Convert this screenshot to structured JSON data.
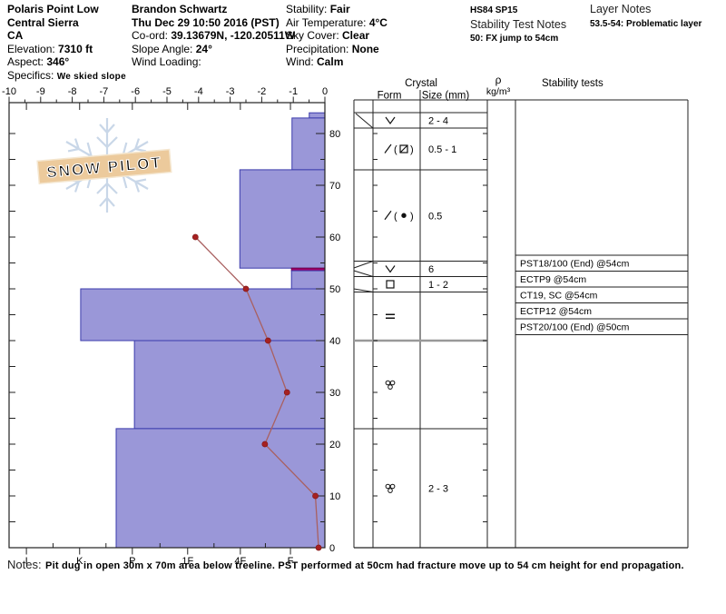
{
  "header": {
    "columns": [
      {
        "name": "location",
        "lines": [
          {
            "text": "Polaris Point Low",
            "bold": true
          },
          {
            "text": "Central Sierra",
            "bold": true
          },
          {
            "text": "CA",
            "bold": true
          },
          {
            "label": "Elevation: ",
            "value": "7310 ft"
          },
          {
            "label": "Aspect: ",
            "value": "346°"
          },
          {
            "label": "Specifics: ",
            "value": "We skied slope",
            "small_value": true
          }
        ]
      },
      {
        "name": "observer",
        "lines": [
          {
            "text": "Brandon Schwartz",
            "bold": true
          },
          {
            "text": "Thu Dec 29 10:50 2016 (PST)",
            "bold": true
          },
          {
            "label": "Co-ord: ",
            "value": "39.13679N, -120.20511W"
          },
          {
            "label": "Slope Angle: ",
            "value": "24°"
          },
          {
            "label": "Wind Loading:",
            "value": ""
          }
        ]
      },
      {
        "name": "conditions",
        "lines": [
          {
            "label": "Stability: ",
            "value": "Fair"
          },
          {
            "label": "Air Temperature: ",
            "value": "4°C"
          },
          {
            "label": "Sky Cover: ",
            "value": "Clear"
          },
          {
            "label": "Precipitation: ",
            "value": "None"
          },
          {
            "label": "Wind: ",
            "value": "Calm"
          }
        ]
      },
      {
        "name": "test-notes",
        "lines": [
          {
            "text": "HS84 SP15",
            "bold": true,
            "small": true
          },
          {
            "text": "Stability Test Notes",
            "medium": true
          },
          {
            "text": "50: FX jump to 54cm",
            "bold": true,
            "small": true
          }
        ]
      },
      {
        "name": "layer-notes",
        "lines": [
          {
            "text": "Layer Notes",
            "medium": true
          },
          {
            "text": "53.5-54: Problematic layer",
            "bold": true,
            "small": true
          }
        ]
      }
    ]
  },
  "watermark": {
    "text": "SNOW PILOT"
  },
  "chart_data": [
    {
      "type": "bar",
      "description": "snow hardness profile (horizontal bars, depth vs hand hardness)",
      "depth_axis": {
        "range_cm": [
          0,
          84
        ],
        "tick_labels": [
          "0",
          "10",
          "20",
          "30",
          "40",
          "50",
          "60",
          "70",
          "80"
        ],
        "minor_step_cm": 5
      },
      "temperature_axis": {
        "range_c": [
          -10,
          0
        ],
        "tick_labels": [
          "-10",
          "-9",
          "-8",
          "-7",
          "-6",
          "-5",
          "-4",
          "-3",
          "-2",
          "-1",
          "0"
        ]
      },
      "hardness_axis": {
        "ticks": [
          {
            "label": "I",
            "v": 5.72
          },
          {
            "label": "K",
            "v": 4.7
          },
          {
            "label": "P",
            "v": 3.69
          },
          {
            "label": "1F",
            "v": 2.63
          },
          {
            "label": "4F",
            "v": 1.62
          },
          {
            "label": "F",
            "v": 0.66
          }
        ]
      },
      "layers": [
        {
          "top_cm": 84,
          "bottom_cm": 83,
          "hardness": "F-",
          "hardness_steps": 0.3,
          "grain_form": "surface hoar",
          "grain_form_icon": "v-chevron",
          "grain_size_mm": "2 - 4"
        },
        {
          "top_cm": 83,
          "bottom_cm": 73,
          "hardness": "F",
          "hardness_steps": 0.63,
          "grain_form": "decomposing fragments (mixed form square)",
          "grain_form_icon": "slash-paren-square",
          "grain_size_mm": "0.5 - 1"
        },
        {
          "top_cm": 73,
          "bottom_cm": 54,
          "hardness": "4F",
          "hardness_steps": 1.63,
          "grain_form": "decomposing fragments (mixed form dot)",
          "grain_form_icon": "slash-paren-dot",
          "grain_size_mm": "0.5"
        },
        {
          "top_cm": 54,
          "bottom_cm": 53.5,
          "hardness": "F",
          "hardness_steps": 0.64,
          "problem_layer": true,
          "grain_form": "buried surface hoar",
          "grain_form_icon": "v-chevron",
          "grain_size_mm": "6"
        },
        {
          "top_cm": 53.5,
          "bottom_cm": 50,
          "hardness": "F",
          "hardness_steps": 0.64,
          "grain_form": "faceted crystals",
          "grain_form_icon": "square",
          "grain_size_mm": "1 - 2"
        },
        {
          "top_cm": 50,
          "bottom_cm": 40,
          "hardness": "K",
          "hardness_steps": 4.68,
          "grain_form": "ice crust",
          "grain_form_icon": "double-bar",
          "grain_size_mm": ""
        },
        {
          "top_cm": 40,
          "bottom_cm": 23,
          "hardness": "P",
          "hardness_steps": 3.65,
          "grain_form": "melt forms cluster",
          "grain_form_icon": "circle-cluster",
          "grain_size_mm": ""
        },
        {
          "top_cm": 23,
          "bottom_cm": 0,
          "hardness": "P",
          "hardness_steps": 4.0,
          "grain_form": "melt forms cluster",
          "grain_form_icon": "circle-cluster",
          "grain_size_mm": "2 - 3"
        }
      ]
    },
    {
      "type": "line",
      "description": "snow temperature profile",
      "series": [
        {
          "name": "temperature",
          "points": [
            {
              "depth_cm": 60,
              "temp_c": -4.1
            },
            {
              "depth_cm": 50,
              "temp_c": -2.5
            },
            {
              "depth_cm": 40,
              "temp_c": -1.8
            },
            {
              "depth_cm": 30,
              "temp_c": -1.2
            },
            {
              "depth_cm": 20,
              "temp_c": -1.9
            },
            {
              "depth_cm": 10,
              "temp_c": -0.3
            },
            {
              "depth_cm": 0,
              "temp_c": -0.2
            }
          ]
        }
      ]
    }
  ],
  "crystal_table": {
    "headers": {
      "crystal": "Crystal",
      "form": "Form",
      "size": "Size (mm)",
      "density": "ρ",
      "density_units": "kg/m³",
      "stability": "Stability tests"
    }
  },
  "stability_tests": [
    "PST18/100 (End) @54cm",
    "ECTP9 @54cm",
    "CT19, SC @54cm",
    "ECTP12 @54cm",
    "PST20/100 (End) @50cm"
  ],
  "notes": {
    "label": "Notes:",
    "text": "Pit dug in open 30m x 70m area below treeline. PST performed at 50cm had fracture move up to 54 cm height for end propagation."
  },
  "colors": {
    "bar_fill": "#9a97d8",
    "bar_stroke": "#3b3bac",
    "problem_layer": "#a0006a",
    "temp_line": "#a96060",
    "temp_marker": "#a62121",
    "grid": "#222222",
    "watermark_banner": "#ecca9c",
    "watermark_flake": "#c9d7e8"
  }
}
